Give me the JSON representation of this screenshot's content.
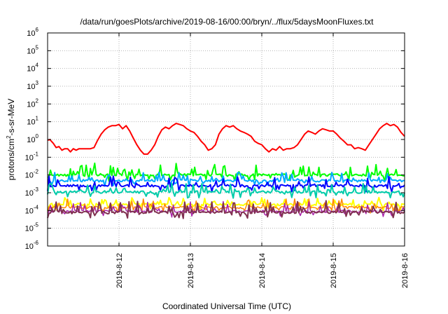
{
  "chart_data": {
    "type": "line",
    "title": "/data/run/goesPlots/archive/2019-08-16/00:00/bryn/../flux/5daysMoonFluxes.txt",
    "xlabel": "Coordinated Universal Time (UTC)",
    "ylabel": "protons/cm²-s-sr-MeV",
    "yscale": "log",
    "ylim": [
      1e-06,
      1000000.0
    ],
    "xlim": [
      "2019-08-11T00:00",
      "2019-08-16T00:00"
    ],
    "grid": true,
    "x_ticks": [
      "2019-8-12",
      "2019-8-13",
      "2019-8-14",
      "2019-8-15",
      "2019-8-16"
    ],
    "y_ticks": [
      {
        "base": "10",
        "exp": "-6"
      },
      {
        "base": "10",
        "exp": "-5"
      },
      {
        "base": "10",
        "exp": "-4"
      },
      {
        "base": "10",
        "exp": "-3"
      },
      {
        "base": "10",
        "exp": "-2"
      },
      {
        "base": "10",
        "exp": "-1"
      },
      {
        "base": "10",
        "exp": "0"
      },
      {
        "base": "10",
        "exp": "1"
      },
      {
        "base": "10",
        "exp": "2"
      },
      {
        "base": "10",
        "exp": "3"
      },
      {
        "base": "10",
        "exp": "4"
      },
      {
        "base": "10",
        "exp": "5"
      },
      {
        "base": "10",
        "exp": "6"
      }
    ],
    "series": [
      {
        "color": "#ff0000",
        "width": 2,
        "x_day": [
          0,
          0.03,
          0.08,
          0.12,
          0.16,
          0.2,
          0.24,
          0.28,
          0.32,
          0.36,
          0.4,
          0.44,
          0.48,
          0.52,
          0.56,
          0.6,
          0.65,
          0.7,
          0.75,
          0.8,
          0.85,
          0.9,
          0.95,
          1.0,
          1.05,
          1.1,
          1.15,
          1.2,
          1.25,
          1.3,
          1.35,
          1.4,
          1.45,
          1.5,
          1.55,
          1.6,
          1.65,
          1.7,
          1.75,
          1.8,
          1.85,
          1.9,
          1.95,
          2.0,
          2.05,
          2.1,
          2.15,
          2.2,
          2.25,
          2.3,
          2.35,
          2.4,
          2.45,
          2.5,
          2.55,
          2.6,
          2.65,
          2.7,
          2.75,
          2.8,
          2.85,
          2.9,
          2.95,
          3.0,
          3.05,
          3.1,
          3.15,
          3.2,
          3.25,
          3.3,
          3.35,
          3.4,
          3.45,
          3.5,
          3.55,
          3.6,
          3.65,
          3.7,
          3.75,
          3.8,
          3.85,
          3.9,
          3.95,
          4.0,
          4.05,
          4.1,
          4.15,
          4.2,
          4.25,
          4.3,
          4.35,
          4.4,
          4.45,
          4.5,
          4.55,
          4.6,
          4.65,
          4.7,
          4.75,
          4.8,
          4.85,
          4.9,
          4.95,
          5.0
        ],
        "values": [
          0.9,
          1.0,
          0.6,
          0.35,
          0.4,
          0.25,
          0.3,
          0.3,
          0.2,
          0.3,
          0.25,
          0.3,
          0.3,
          0.3,
          0.3,
          0.3,
          0.35,
          0.9,
          2.0,
          3.5,
          5,
          6,
          6,
          7,
          4,
          6,
          3,
          1.2,
          0.5,
          0.25,
          0.15,
          0.15,
          0.25,
          0.5,
          1.5,
          3.5,
          5,
          4,
          6,
          8,
          7,
          6,
          4,
          3,
          2.5,
          1.5,
          0.8,
          0.5,
          0.25,
          0.3,
          0.5,
          2.0,
          4.0,
          6,
          5,
          6,
          4,
          3,
          2.5,
          2,
          1.5,
          0.8,
          0.6,
          0.5,
          0.3,
          0.2,
          0.3,
          0.25,
          0.4,
          0.25,
          0.3,
          0.3,
          0.35,
          0.5,
          1.0,
          2,
          3,
          2.5,
          2,
          3,
          4,
          3.5,
          3,
          3,
          2,
          1.2,
          0.8,
          0.5,
          0.5,
          0.3,
          0.35,
          0.3,
          0.25,
          0.5,
          1.0,
          2.0,
          4,
          6,
          8,
          6,
          7,
          5,
          2.5,
          1.5
        ]
      },
      {
        "color": "#00ff00",
        "width": 2,
        "base": 0.01,
        "amp": 2.6,
        "seed": 11
      },
      {
        "color": "#00aaff",
        "width": 2,
        "base": 0.0048,
        "amp": 2.0,
        "seed": 23
      },
      {
        "color": "#0000ff",
        "width": 2,
        "base": 0.0025,
        "amp": 2.2,
        "seed": 37
      },
      {
        "color": "#00ccaa",
        "width": 2,
        "base": 0.0011,
        "amp": 2.0,
        "seed": 41
      },
      {
        "color": "#ffff00",
        "width": 2,
        "base": 0.00022,
        "amp": 1.8,
        "seed": 53
      },
      {
        "color": "#ff8800",
        "width": 1.5,
        "base": 0.00015,
        "amp": 2.0,
        "seed": 67
      },
      {
        "color": "#aa22aa",
        "width": 1.5,
        "base": 9e-05,
        "amp": 2.4,
        "seed": 71
      },
      {
        "color": "#803050",
        "width": 2,
        "base": 8e-05,
        "amp": 2.6,
        "seed": 83
      }
    ]
  }
}
